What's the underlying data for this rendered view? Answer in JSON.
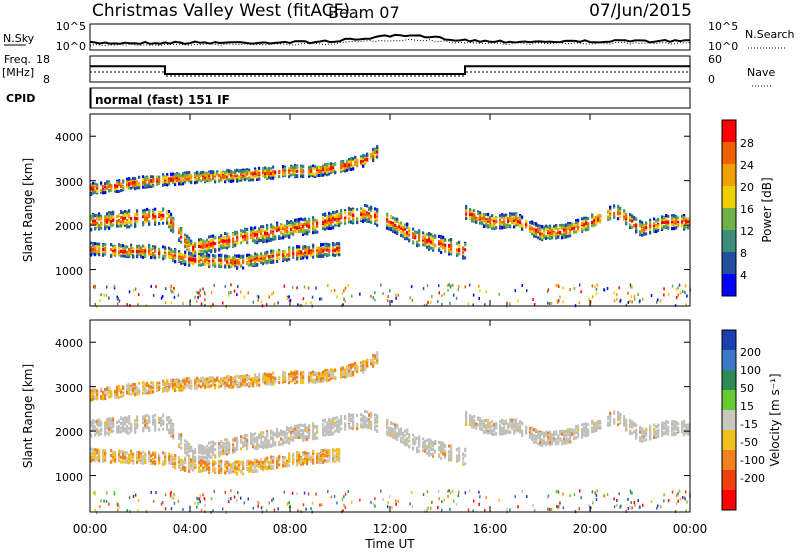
{
  "header": {
    "station": "Christmas Valley West (fitACF)",
    "beam": "Beam 07",
    "date": "07/Jun/2015"
  },
  "sky_panel": {
    "left_label": "N.Sky",
    "right_label": "N.Search",
    "left_ticks": [
      "10^5",
      "10^0"
    ],
    "right_ticks": [
      "10^5",
      "10^0"
    ]
  },
  "freq_panel": {
    "left_label_1": "Freq.",
    "left_label_2": "[MHz]",
    "right_label": "Nave",
    "left_ticks": [
      "18",
      "8"
    ],
    "right_ticks": [
      "60",
      "0"
    ]
  },
  "cpid": {
    "label": "CPID",
    "value": "normal (fast) 151 IF"
  },
  "x_axis": {
    "label": "Time UT",
    "ticks": [
      "00:00",
      "04:00",
      "08:00",
      "12:00",
      "16:00",
      "20:00",
      "00:00"
    ]
  },
  "power_panel": {
    "ylabel": "Slant Range [km]",
    "yticks": [
      "1000",
      "2000",
      "3000",
      "4000"
    ],
    "colorbar_label": "Power [dB]",
    "colorbar_ticks": [
      "4",
      "8",
      "12",
      "16",
      "20",
      "24",
      "28"
    ],
    "colors": [
      "#0000ff",
      "#214fa0",
      "#3c8e7a",
      "#6fb048",
      "#f0d000",
      "#f0a000",
      "#f06000",
      "#ff0000"
    ]
  },
  "velocity_panel": {
    "ylabel": "Slant Range [km]",
    "yticks": [
      "1000",
      "2000",
      "3000",
      "4000"
    ],
    "colorbar_label": "Velocity [m s⁻¹]",
    "colorbar_ticks": [
      "200",
      "100",
      "50",
      "15",
      "-15",
      "-50",
      "-100",
      "-200"
    ],
    "colors": [
      "#1e3fb0",
      "#3c78c8",
      "#2e8b57",
      "#66cc33",
      "#c8c8c0",
      "#f0c020",
      "#f08020",
      "#f04010",
      "#ff0000"
    ],
    "ground_scatter_color": "#c0c0bc"
  },
  "chart_data": {
    "type": "heatmap",
    "title": "Christmas Valley West (fitACF)",
    "subtitle": "Beam 07",
    "date": "07/Jun/2015",
    "xlabel": "Time UT",
    "ylabel": "Slant Range [km]",
    "xlim_hours": [
      0,
      24
    ],
    "ylim_km": [
      180,
      4500
    ],
    "operating_frequency_mhz": [
      {
        "start_h": 0,
        "end_h": 3,
        "freq": 14.5
      },
      {
        "start_h": 3,
        "end_h": 15,
        "freq": 10.3
      },
      {
        "start_h": 15,
        "end_h": 24,
        "freq": 14.5
      }
    ],
    "scatter_bands": [
      {
        "name": "upper-band",
        "points": [
          [
            0,
            2850
          ],
          [
            1,
            2900
          ],
          [
            2,
            3000
          ],
          [
            3,
            3050
          ],
          [
            4,
            3100
          ],
          [
            6,
            3150
          ],
          [
            8,
            3250
          ],
          [
            9,
            3250
          ],
          [
            10,
            3350
          ],
          [
            11,
            3500
          ],
          [
            11.5,
            3700
          ]
        ]
      },
      {
        "name": "main-band",
        "points": [
          [
            0,
            2100
          ],
          [
            1,
            2150
          ],
          [
            2,
            2200
          ],
          [
            3,
            2250
          ],
          [
            4,
            1500
          ],
          [
            6,
            1750
          ],
          [
            8,
            1950
          ],
          [
            9,
            2050
          ],
          [
            10,
            2200
          ],
          [
            11,
            2300
          ],
          [
            12,
            2100
          ],
          [
            13,
            1750
          ],
          [
            14,
            1600
          ],
          [
            15,
            1450
          ]
        ]
      },
      {
        "name": "evening-band",
        "points": [
          [
            15,
            2300
          ],
          [
            16,
            2100
          ],
          [
            17,
            2150
          ],
          [
            18,
            1850
          ],
          [
            19,
            1900
          ],
          [
            20,
            2100
          ],
          [
            21,
            2350
          ],
          [
            22,
            1950
          ],
          [
            23,
            2100
          ],
          [
            24,
            2100
          ]
        ]
      },
      {
        "name": "lower-band",
        "points": [
          [
            0,
            1500
          ],
          [
            1,
            1450
          ],
          [
            2,
            1450
          ],
          [
            3,
            1400
          ],
          [
            4,
            1250
          ],
          [
            6,
            1200
          ],
          [
            8,
            1400
          ],
          [
            10,
            1500
          ]
        ]
      }
    ],
    "power_range_db": [
      0,
      30
    ],
    "velocity_range_ms": [
      -200,
      200
    ]
  }
}
